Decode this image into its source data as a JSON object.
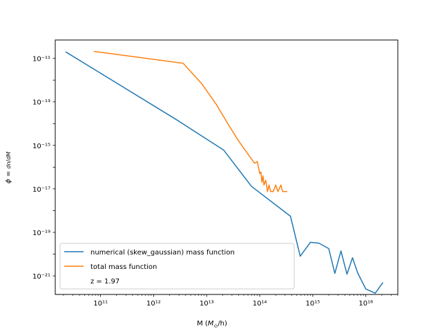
{
  "chart_data": {
    "type": "line",
    "x_scale": "log",
    "y_scale": "log",
    "xlabel": "M (M⊙/h)",
    "ylabel": "φ = dn/dM",
    "xlim": [
      14000000000.0,
      4e+16
    ],
    "ylim": [
      1.4e-22,
      7e-11
    ],
    "x_tick_labels": [
      "10¹¹",
      "10¹²",
      "10¹³",
      "10¹⁴",
      "10¹⁵",
      "10¹⁶"
    ],
    "y_tick_labels": [
      "10⁻²¹",
      "10⁻¹⁹",
      "10⁻¹⁷",
      "10⁻¹⁵",
      "10⁻¹³",
      "10⁻¹¹"
    ],
    "legend_position": "lower-left",
    "annotation": "z = 1.97",
    "series": [
      {
        "name": "numerical (skew_gaussian) mass function",
        "color": "#1f77b4",
        "points": [
          [
            22000000000.0,
            2e-11
          ],
          [
            2600000000000.0,
            1.6e-14
          ],
          [
            21000000000000.0,
            6e-16
          ],
          [
            70000000000000.0,
            1.3e-17
          ],
          [
            380000000000000.0,
            5.5e-19
          ],
          [
            580000000000000.0,
            8e-21
          ],
          [
            900000000000000.0,
            3.5e-20
          ],
          [
            1300000000000000.0,
            3.2e-20
          ],
          [
            2000000000000000.0,
            1.8e-20
          ],
          [
            2600000000000000.0,
            1.3e-21
          ],
          [
            3400000000000000.0,
            1.4e-20
          ],
          [
            4400000000000000.0,
            1.2e-21
          ],
          [
            5600000000000000.0,
            6.8e-21
          ],
          [
            7000000000000000.0,
            1.4e-21
          ],
          [
            1e+16,
            2.5e-22
          ],
          [
            1.5e+16,
            1.6e-22
          ],
          [
            2.1e+16,
            5e-22
          ]
        ]
      },
      {
        "name": "total mass function",
        "color": "#ff7f0e",
        "points": [
          [
            75000000000.0,
            2.1e-11
          ],
          [
            3600000000000.0,
            6e-12
          ],
          [
            8000000000000.0,
            7e-13
          ],
          [
            15000000000000.0,
            8e-14
          ],
          [
            25000000000000.0,
            1e-14
          ],
          [
            40000000000000.0,
            1.6e-15
          ],
          [
            60000000000000.0,
            4e-16
          ],
          [
            80000000000000.0,
            1.5e-16
          ],
          [
            90000000000000.0,
            1.8e-16
          ],
          [
            100000000000000.0,
            5e-17
          ],
          [
            105000000000000.0,
            6e-17
          ],
          [
            110000000000000.0,
            2e-17
          ],
          [
            115000000000000.0,
            4e-17
          ],
          [
            120000000000000.0,
            1.5e-17
          ],
          [
            130000000000000.0,
            2.5e-17
          ],
          [
            140000000000000.0,
            7.5e-18
          ],
          [
            150000000000000.0,
            1.5e-17
          ],
          [
            160000000000000.0,
            7.5e-18
          ],
          [
            170000000000000.0,
            7.5e-18
          ],
          [
            180000000000000.0,
            7.5e-18
          ],
          [
            200000000000000.0,
            1.5e-17
          ],
          [
            220000000000000.0,
            7.5e-18
          ],
          [
            250000000000000.0,
            1.5e-17
          ],
          [
            270000000000000.0,
            7.5e-18
          ],
          [
            300000000000000.0,
            7.5e-18
          ],
          [
            330000000000000.0,
            7.5e-18
          ]
        ]
      }
    ]
  }
}
